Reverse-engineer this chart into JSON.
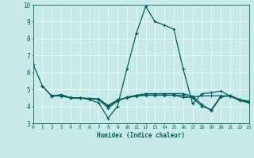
{
  "background_color": "#c8eae8",
  "grid_color": "#e8f8f8",
  "line_color": "#006060",
  "xlabel": "Humidex (Indice chaleur)",
  "ylim": [
    3,
    10
  ],
  "xlim": [
    0,
    23
  ],
  "yticks": [
    3,
    4,
    5,
    6,
    7,
    8,
    9,
    10
  ],
  "xticks": [
    0,
    1,
    2,
    3,
    4,
    5,
    6,
    7,
    8,
    9,
    10,
    11,
    12,
    13,
    14,
    15,
    16,
    17,
    18,
    19,
    20,
    21,
    22,
    23
  ],
  "lines": [
    {
      "x": [
        0,
        1,
        2,
        3,
        4,
        5,
        6,
        7,
        8,
        9,
        10,
        11,
        12,
        13,
        14,
        15,
        16,
        17,
        18,
        19,
        20,
        21,
        22,
        23
      ],
      "y": [
        6.5,
        5.2,
        4.6,
        4.7,
        4.5,
        4.5,
        4.4,
        4.2,
        3.3,
        4.0,
        6.2,
        8.3,
        9.9,
        9.0,
        8.8,
        8.55,
        6.2,
        4.15,
        4.75,
        4.8,
        4.9,
        4.6,
        4.4,
        4.3
      ]
    },
    {
      "x": [
        2,
        3,
        4,
        5,
        6,
        7,
        8,
        9,
        10,
        11,
        12,
        13,
        14,
        15,
        16,
        17,
        18,
        19,
        20,
        21,
        22,
        23
      ],
      "y": [
        4.6,
        4.65,
        4.5,
        4.5,
        4.45,
        4.4,
        3.9,
        4.3,
        4.55,
        4.65,
        4.75,
        4.75,
        4.75,
        4.75,
        4.75,
        4.6,
        4.1,
        3.75,
        4.55,
        4.65,
        4.4,
        4.25
      ]
    },
    {
      "x": [
        2,
        3,
        4,
        5,
        6,
        7,
        8,
        9,
        10,
        11,
        12,
        13,
        14,
        15,
        16,
        17,
        18,
        19,
        20,
        21,
        22,
        23
      ],
      "y": [
        4.65,
        4.6,
        4.5,
        4.48,
        4.45,
        4.42,
        4.0,
        4.35,
        4.5,
        4.6,
        4.65,
        4.65,
        4.65,
        4.65,
        4.65,
        4.5,
        4.0,
        3.8,
        4.6,
        4.6,
        4.35,
        4.2
      ]
    },
    {
      "x": [
        1,
        2,
        3,
        4,
        5,
        6,
        7,
        8,
        9,
        10,
        11,
        12,
        13,
        14,
        15,
        16,
        17,
        18,
        19,
        20,
        21,
        22,
        23
      ],
      "y": [
        5.2,
        4.6,
        4.62,
        4.52,
        4.5,
        4.47,
        4.44,
        4.05,
        4.38,
        4.52,
        4.62,
        4.67,
        4.67,
        4.67,
        4.67,
        4.52,
        4.55,
        4.62,
        4.62,
        4.62,
        4.62,
        4.37,
        4.22
      ]
    }
  ]
}
